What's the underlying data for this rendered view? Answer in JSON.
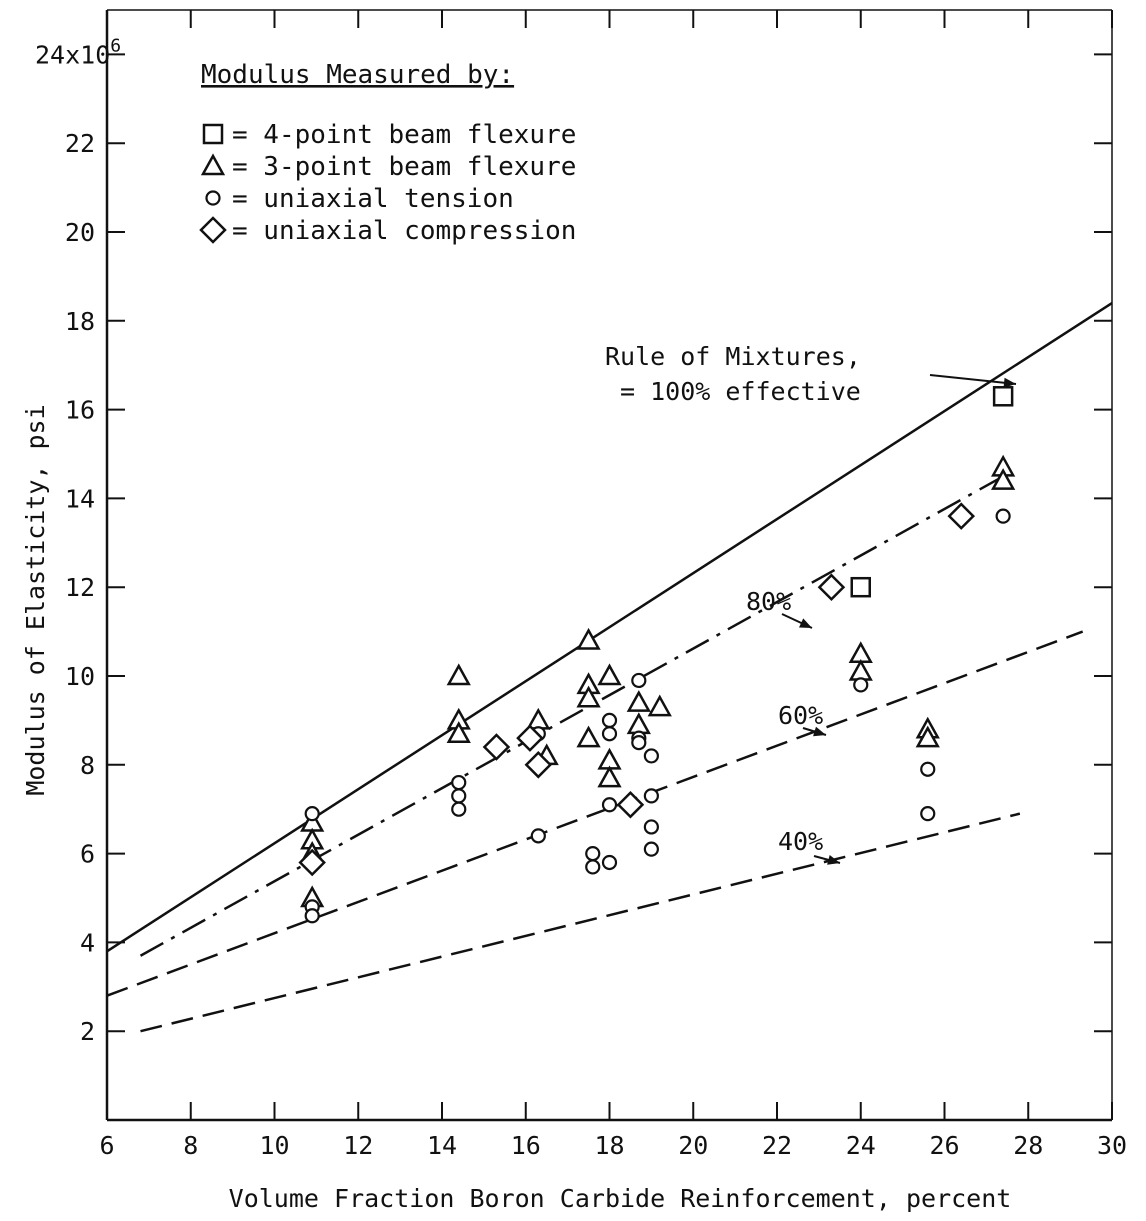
{
  "chart_data": {
    "type": "scatter",
    "xlabel": "Volume Fraction Boron Carbide Reinforcement, percent",
    "ylabel": "Modulus of Elasticity, psi",
    "xlim": [
      6,
      30
    ],
    "ylim": [
      0,
      25
    ],
    "x_ticks": [
      6,
      8,
      10,
      12,
      14,
      16,
      18,
      20,
      22,
      24,
      26,
      28,
      30
    ],
    "y_ticks": [
      2,
      4,
      6,
      8,
      10,
      12,
      14,
      16,
      18,
      20,
      22,
      24
    ],
    "y_tick_labels": [
      "2",
      "4",
      "6",
      "8",
      "10",
      "12",
      "14",
      "16",
      "18",
      "20",
      "22",
      "24x10^6"
    ],
    "grid": false,
    "legend": {
      "title": "Modulus Measured by:",
      "placement": "top-left",
      "entries": [
        {
          "symbol": "square",
          "label": "= 4-point beam flexure"
        },
        {
          "symbol": "triangle",
          "label": "= 3-point beam flexure"
        },
        {
          "symbol": "circle",
          "label": "= uniaxial tension"
        },
        {
          "symbol": "diamond",
          "label": "= uniaxial compression"
        }
      ]
    },
    "series": [
      {
        "symbol": "square",
        "points": [
          [
            24.0,
            12.0
          ],
          [
            27.4,
            16.3
          ]
        ]
      },
      {
        "symbol": "triangle",
        "points": [
          [
            10.9,
            6.7
          ],
          [
            10.9,
            6.3
          ],
          [
            10.9,
            6.0
          ],
          [
            10.9,
            5.0
          ],
          [
            14.4,
            10.0
          ],
          [
            14.4,
            9.0
          ],
          [
            14.4,
            8.7
          ],
          [
            16.3,
            9.0
          ],
          [
            16.5,
            8.2
          ],
          [
            17.5,
            10.8
          ],
          [
            17.5,
            9.8
          ],
          [
            17.5,
            9.5
          ],
          [
            17.5,
            8.6
          ],
          [
            18.0,
            10.0
          ],
          [
            18.0,
            8.1
          ],
          [
            18.0,
            7.7
          ],
          [
            18.7,
            9.4
          ],
          [
            18.7,
            8.9
          ],
          [
            19.2,
            9.3
          ],
          [
            24.0,
            10.5
          ],
          [
            24.0,
            10.1
          ],
          [
            25.6,
            8.8
          ],
          [
            25.6,
            8.6
          ],
          [
            27.4,
            14.7
          ],
          [
            27.4,
            14.4
          ]
        ]
      },
      {
        "symbol": "circle",
        "points": [
          [
            10.9,
            6.9
          ],
          [
            10.9,
            4.8
          ],
          [
            10.9,
            4.6
          ],
          [
            14.4,
            7.6
          ],
          [
            14.4,
            7.3
          ],
          [
            14.4,
            7.0
          ],
          [
            16.3,
            8.7
          ],
          [
            16.3,
            6.4
          ],
          [
            17.6,
            6.0
          ],
          [
            17.6,
            5.7
          ],
          [
            18.0,
            5.8
          ],
          [
            18.0,
            9.0
          ],
          [
            18.0,
            8.7
          ],
          [
            18.0,
            7.1
          ],
          [
            18.7,
            9.9
          ],
          [
            18.7,
            8.6
          ],
          [
            18.7,
            8.5
          ],
          [
            19.0,
            8.2
          ],
          [
            19.0,
            7.3
          ],
          [
            19.0,
            6.6
          ],
          [
            19.0,
            6.1
          ],
          [
            24.0,
            9.8
          ],
          [
            25.6,
            7.9
          ],
          [
            25.6,
            6.9
          ],
          [
            27.4,
            13.6
          ]
        ]
      },
      {
        "symbol": "diamond",
        "points": [
          [
            10.9,
            5.8
          ],
          [
            15.3,
            8.4
          ],
          [
            16.1,
            8.6
          ],
          [
            16.3,
            8.0
          ],
          [
            18.5,
            7.1
          ],
          [
            23.3,
            12.0
          ],
          [
            26.4,
            13.6
          ]
        ]
      }
    ],
    "reference_lines": [
      {
        "name": "Rule of Mixtures, = 100% effective",
        "style": "solid",
        "points": [
          [
            6,
            3.8
          ],
          [
            30,
            18.4
          ]
        ]
      },
      {
        "name": "80%",
        "style": "dash-dot",
        "points": [
          [
            6.8,
            3.7
          ],
          [
            27.6,
            14.6
          ]
        ]
      },
      {
        "name": "60%",
        "style": "dash",
        "points": [
          [
            6.0,
            2.8
          ],
          [
            29.3,
            11.0
          ]
        ]
      },
      {
        "name": "40%",
        "style": "dash",
        "points": [
          [
            6.8,
            2.0
          ],
          [
            27.8,
            6.9
          ]
        ]
      }
    ],
    "annotations": [
      {
        "text": "Rule of Mixtures,",
        "line": "Rule of Mixtures, = 100% effective"
      },
      {
        "text": "= 100% effective",
        "line": "Rule of Mixtures, = 100% effective"
      },
      {
        "text": "80%",
        "line": "80%"
      },
      {
        "text": "60%",
        "line": "60%"
      },
      {
        "text": "40%",
        "line": "40%"
      }
    ]
  }
}
